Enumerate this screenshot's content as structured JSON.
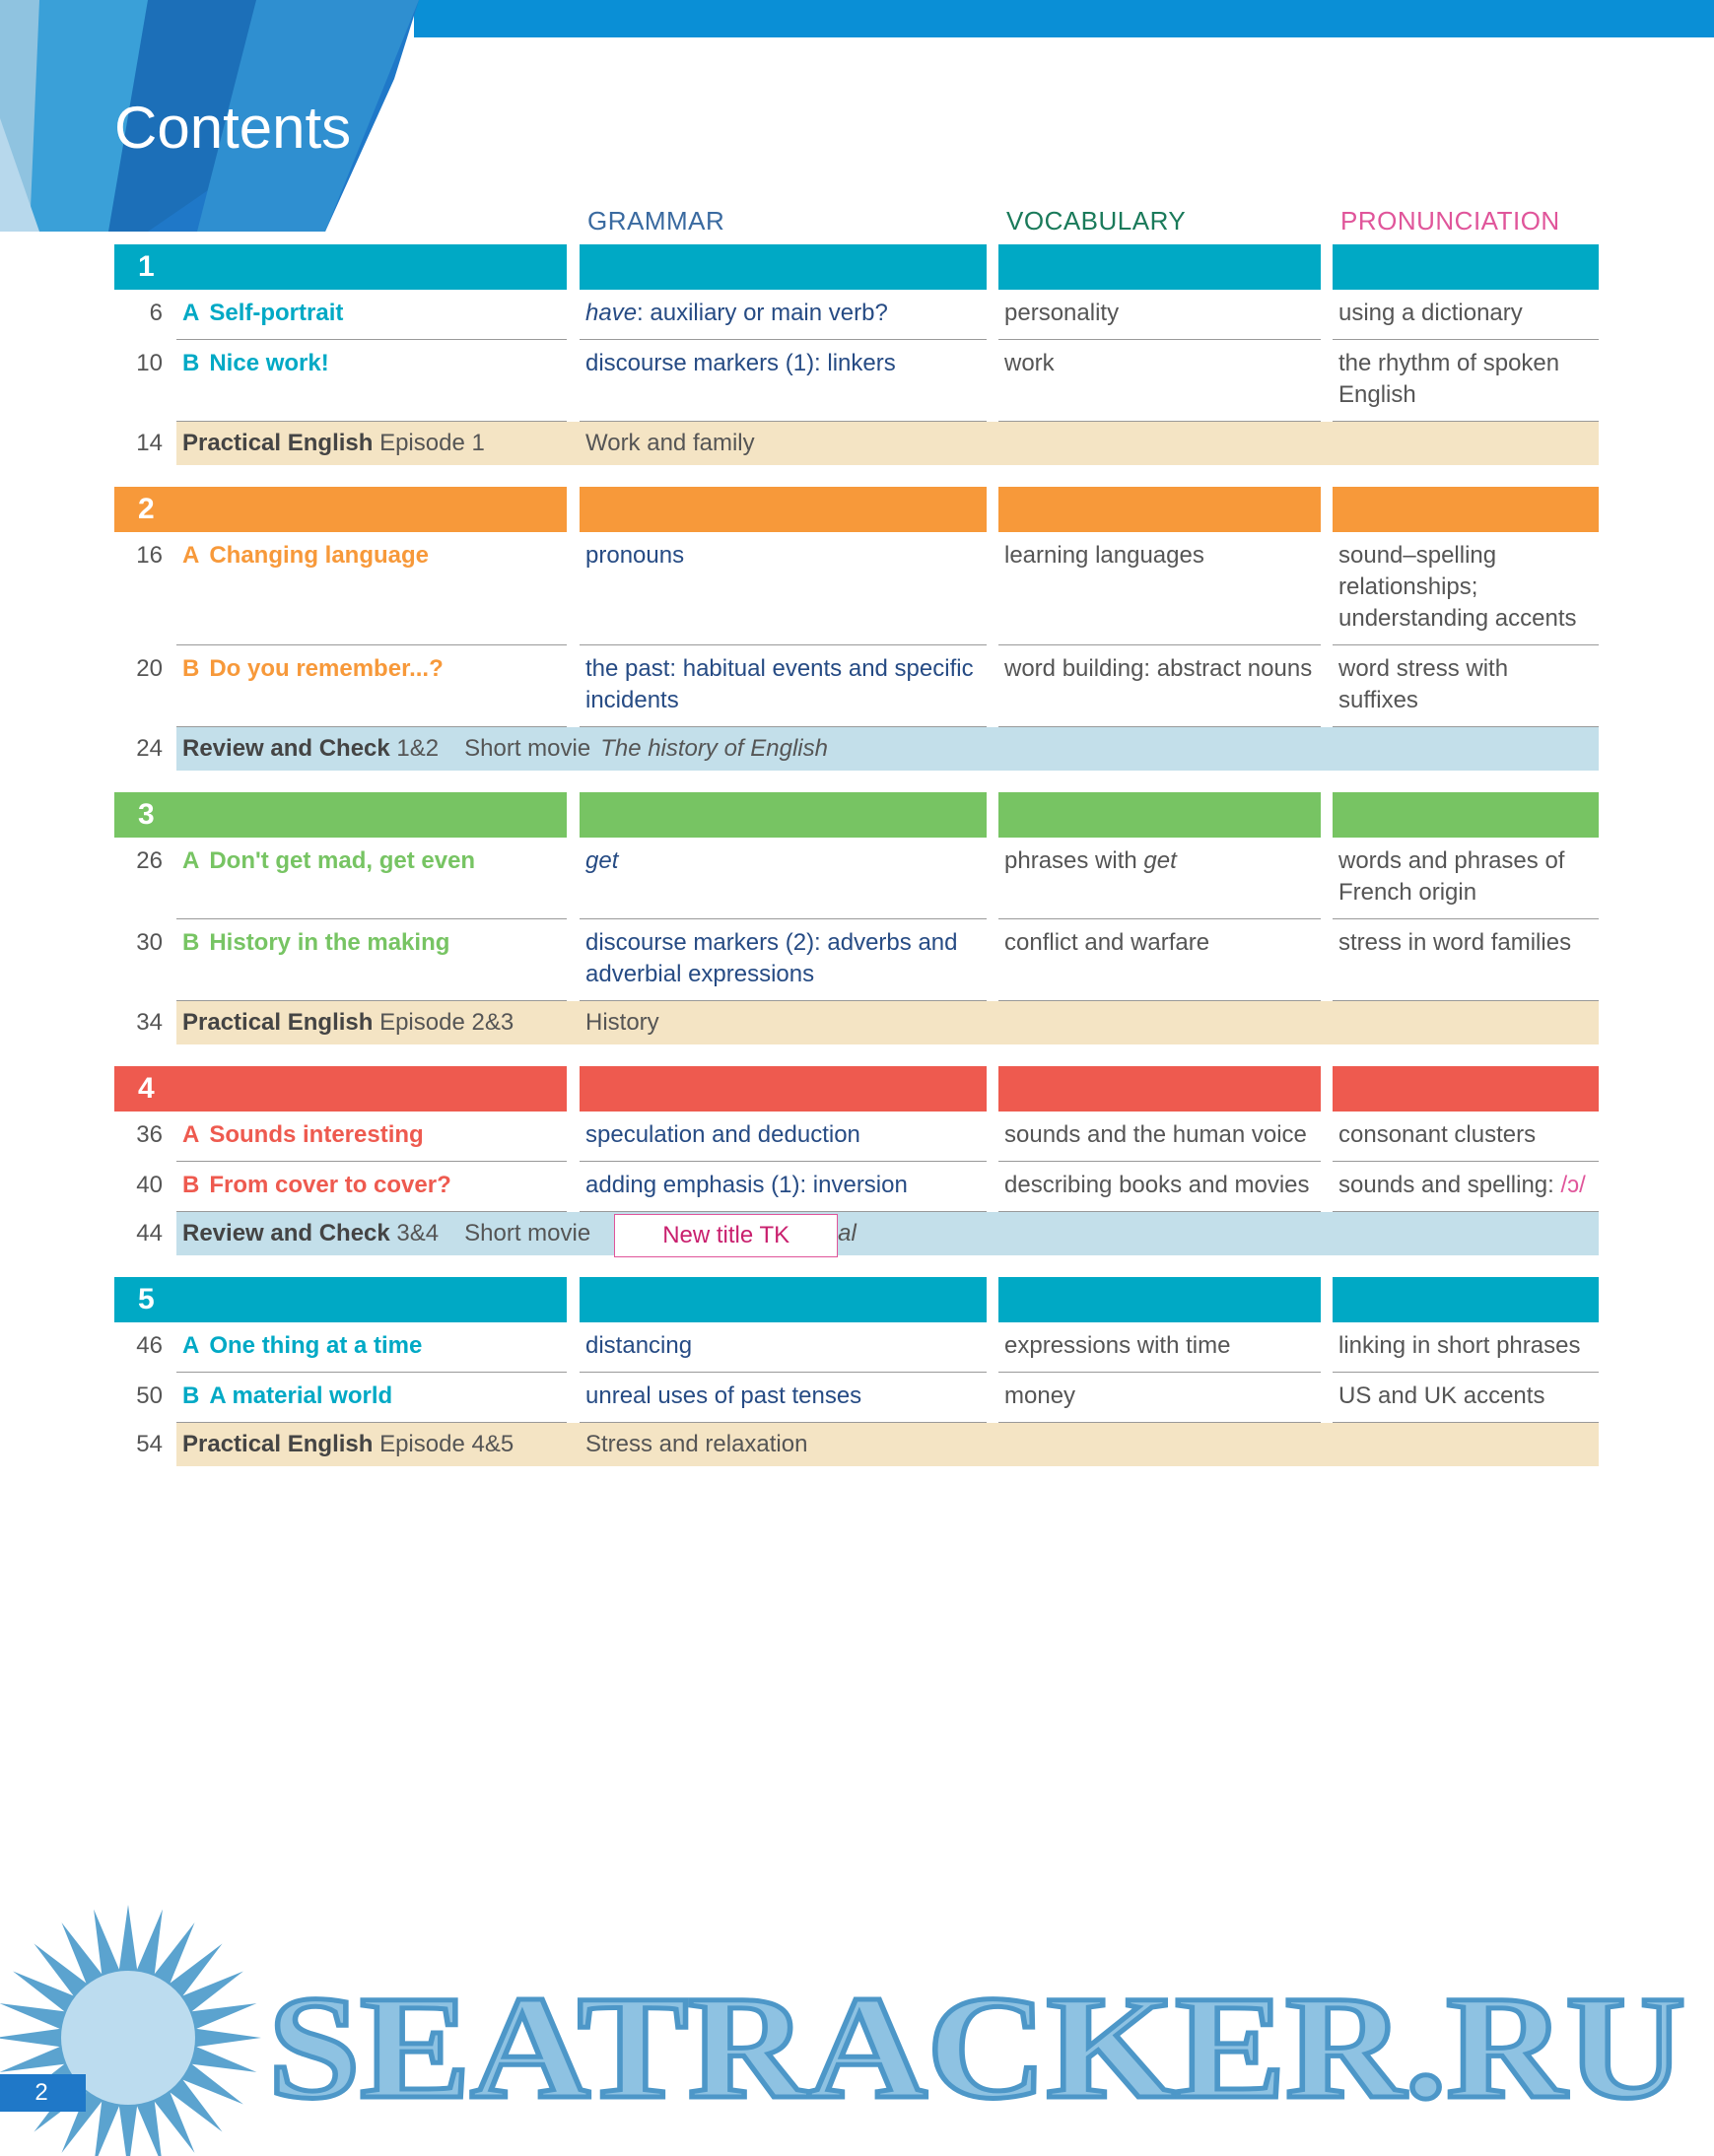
{
  "header": {
    "title": "Contents"
  },
  "columns": {
    "grammar": "GRAMMAR",
    "vocabulary": "VOCABULARY",
    "pronunciation": "PRONUNCIATION"
  },
  "units": [
    {
      "number": "1",
      "color": "#00a9c5",
      "rows": [
        {
          "page": "6",
          "letter": "A",
          "title": "Self-portrait",
          "grammar": [
            {
              "text": "have",
              "style": "italic"
            },
            {
              "text": ": auxiliary or main verb?"
            }
          ],
          "vocabulary": "personality",
          "pronunciation": "using a dictionary"
        },
        {
          "page": "10",
          "letter": "B",
          "title": "Nice work!",
          "grammar": "discourse markers (1): linkers",
          "vocabulary": "work",
          "pronunciation": "the rhythm of spoken English"
        },
        {
          "page": "14",
          "label": "Practical English",
          "episode": "Episode 1",
          "grammar": "Work and family"
        }
      ]
    },
    {
      "number": "2",
      "color": "#f7993a",
      "rows": [
        {
          "page": "16",
          "letter": "A",
          "title": "Changing language",
          "grammar": "pronouns",
          "vocabulary": "learning languages",
          "pronunciation": "sound–spelling relationships; understanding accents"
        },
        {
          "page": "20",
          "letter": "B",
          "title": "Do you remember...?",
          "grammar": "the past: habitual events and specific incidents",
          "vocabulary": "word building: abstract nouns",
          "pronunciation": "word stress with suffixes"
        },
        {
          "page": "24",
          "label": "Review and Check",
          "review_units": "1&2",
          "movie_label": "Short movie",
          "movie_title": "The history of English"
        }
      ]
    },
    {
      "number": "3",
      "color": "#77c463",
      "rows": [
        {
          "page": "26",
          "letter": "A",
          "title": "Don't get mad, get even",
          "grammar": [
            {
              "text": "get",
              "style": "italic"
            }
          ],
          "vocabulary": [
            {
              "text": "phrases with "
            },
            {
              "text": "get",
              "style": "italic"
            }
          ],
          "pronunciation": "words and phrases of French origin"
        },
        {
          "page": "30",
          "letter": "B",
          "title": "History in the making",
          "grammar": "discourse markers (2): adverbs and adverbial expressions",
          "vocabulary": "conflict and warfare",
          "pronunciation": "stress in word families"
        },
        {
          "page": "34",
          "label": "Practical English",
          "episode": "Episode 2&3",
          "grammar": "History"
        }
      ]
    },
    {
      "number": "4",
      "color": "#ee5a4f",
      "rows": [
        {
          "page": "36",
          "letter": "A",
          "title": "Sounds interesting",
          "grammar": "speculation and deduction",
          "vocabulary": "sounds and the human voice",
          "pronunciation": "consonant clusters"
        },
        {
          "page": "40",
          "letter": "B",
          "title": "From cover to cover?",
          "grammar": "adding emphasis (1): inversion",
          "vocabulary": "describing books and movies",
          "pronunciation": [
            {
              "text": "sounds and spelling: "
            },
            {
              "text": "/ɔ/",
              "style": "accent"
            }
          ]
        },
        {
          "page": "44",
          "label": "Review and Check",
          "review_units": "3&4",
          "movie_label": "Short movie",
          "sticker": "New title TK",
          "movie_title": "al"
        }
      ]
    },
    {
      "number": "5",
      "color": "#00a9c5",
      "rows": [
        {
          "page": "46",
          "letter": "A",
          "title": "One thing at a time",
          "grammar": "distancing",
          "vocabulary": "expressions with time",
          "pronunciation": "linking in short phrases"
        },
        {
          "page": "50",
          "letter": "B",
          "title": "A material world",
          "grammar": "unreal uses of past tenses",
          "vocabulary": "money",
          "pronunciation": "US and UK accents"
        },
        {
          "page": "54",
          "label": "Practical English",
          "episode": "Episode 4&5",
          "grammar": "Stress and relaxation"
        }
      ]
    }
  ],
  "watermark": "SEATRACKER.RU",
  "page_number": "2"
}
